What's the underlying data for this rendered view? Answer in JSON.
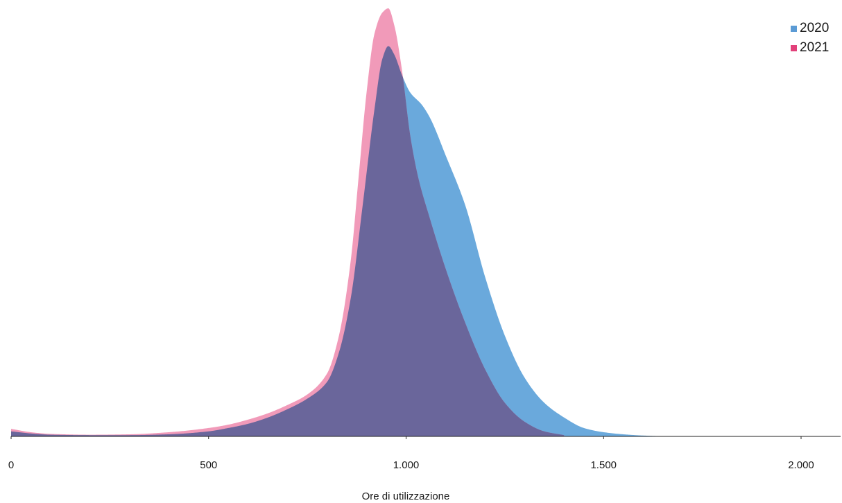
{
  "chart_data": {
    "type": "area",
    "xlabel": "Ore di utilizzazione",
    "ylabel": "",
    "xlim": [
      0,
      2100
    ],
    "x_ticks": [
      0,
      500,
      1000,
      1500,
      2000
    ],
    "x_tick_labels": [
      "0",
      "500",
      "1.000",
      "1.500",
      "2.000"
    ],
    "grid": false,
    "legend": "top-right",
    "colors": {
      "2020": "#6aa9dc",
      "2021": "#f19ab9",
      "2020_legend": "#5b9bd5",
      "2021_legend": "#e2407a",
      "overlap": "#6a669b",
      "axis": "#222222"
    },
    "series": [
      {
        "name": "2020",
        "x": [
          0,
          50,
          100,
          200,
          300,
          400,
          500,
          550,
          600,
          650,
          700,
          750,
          800,
          830,
          860,
          890,
          920,
          940,
          955,
          970,
          990,
          1010,
          1040,
          1060,
          1100,
          1150,
          1200,
          1250,
          1300,
          1350,
          1400,
          1450,
          1500,
          1550,
          1600,
          1650,
          1700
        ],
        "y": [
          0.012,
          0.007,
          0.004,
          0.003,
          0.003,
          0.005,
          0.012,
          0.02,
          0.03,
          0.045,
          0.065,
          0.09,
          0.13,
          0.2,
          0.33,
          0.55,
          0.78,
          0.9,
          0.93,
          0.91,
          0.86,
          0.82,
          0.79,
          0.76,
          0.67,
          0.55,
          0.38,
          0.24,
          0.14,
          0.08,
          0.045,
          0.02,
          0.01,
          0.005,
          0.002,
          0.0005,
          0
        ]
      },
      {
        "name": "2021",
        "x": [
          0,
          50,
          100,
          200,
          300,
          400,
          500,
          550,
          600,
          650,
          700,
          750,
          800,
          830,
          860,
          880,
          900,
          920,
          940,
          955,
          970,
          990,
          1010,
          1030,
          1060,
          1100,
          1150,
          1200,
          1250,
          1300,
          1350,
          1400
        ],
        "y": [
          0.018,
          0.01,
          0.006,
          0.004,
          0.005,
          0.01,
          0.02,
          0.028,
          0.04,
          0.055,
          0.075,
          0.1,
          0.15,
          0.24,
          0.42,
          0.62,
          0.82,
          0.96,
          1.01,
          1.02,
          0.98,
          0.87,
          0.72,
          0.62,
          0.52,
          0.4,
          0.27,
          0.16,
          0.08,
          0.035,
          0.012,
          0.003
        ]
      }
    ]
  }
}
